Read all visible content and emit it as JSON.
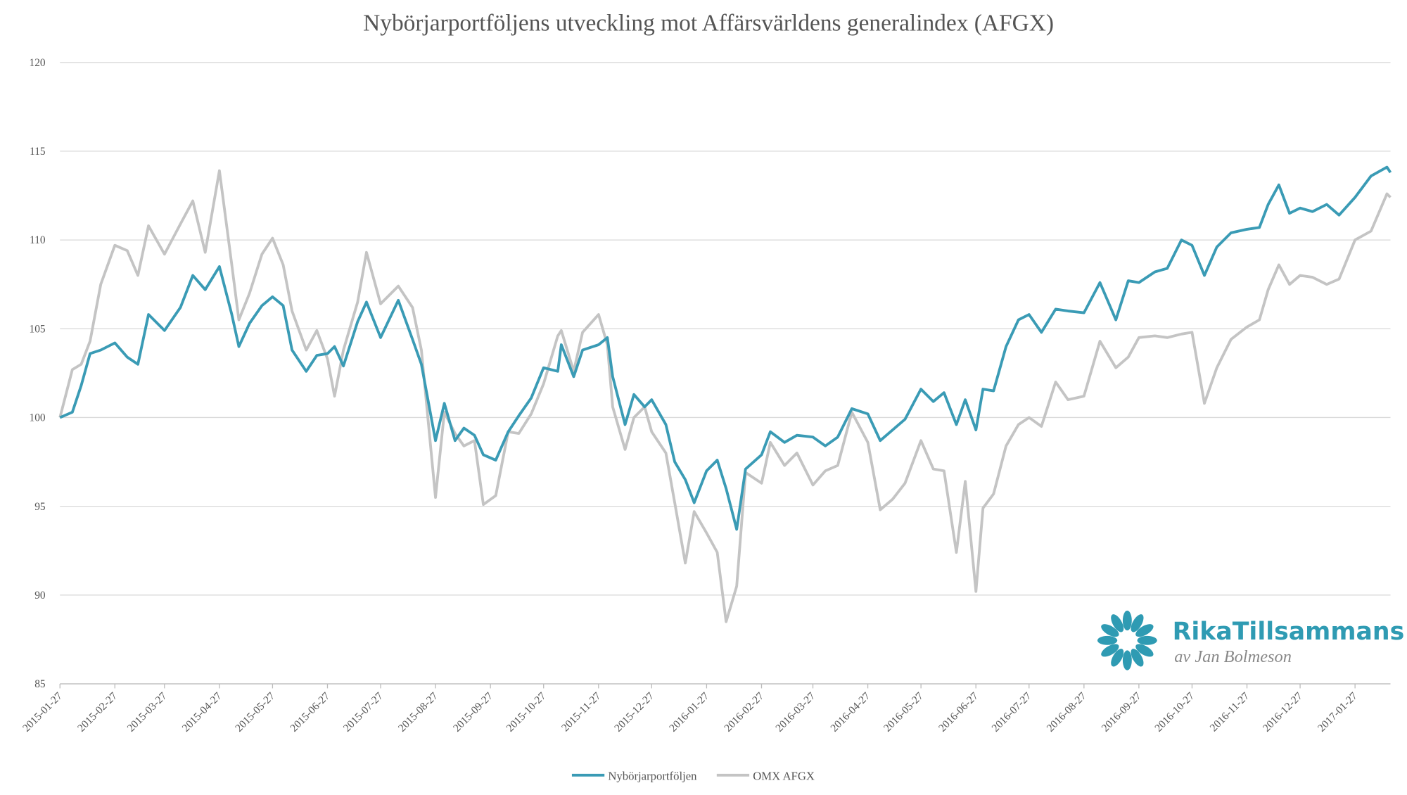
{
  "chart_data": {
    "type": "line",
    "title": "Nybörjarportföljens utveckling mot Affärsvärldens generalindex (AFGX)",
    "x": [
      "2015-01-27",
      "2015-02-03",
      "2015-02-08",
      "2015-02-13",
      "2015-02-19",
      "2015-02-27",
      "2015-03-06",
      "2015-03-12",
      "2015-03-18",
      "2015-03-27",
      "2015-04-05",
      "2015-04-12",
      "2015-04-19",
      "2015-04-27",
      "2015-05-04",
      "2015-05-08",
      "2015-05-14",
      "2015-05-21",
      "2015-05-27",
      "2015-06-02",
      "2015-06-07",
      "2015-06-15",
      "2015-06-21",
      "2015-06-27",
      "2015-07-01",
      "2015-07-06",
      "2015-07-14",
      "2015-07-19",
      "2015-07-27",
      "2015-08-06",
      "2015-08-14",
      "2015-08-19",
      "2015-08-27",
      "2015-09-01",
      "2015-09-07",
      "2015-09-12",
      "2015-09-18",
      "2015-09-23",
      "2015-09-30",
      "2015-10-07",
      "2015-10-13",
      "2015-10-20",
      "2015-10-27",
      "2015-11-04",
      "2015-11-06",
      "2015-11-13",
      "2015-11-18",
      "2015-11-27",
      "2015-12-02",
      "2015-12-05",
      "2015-12-12",
      "2015-12-17",
      "2015-12-23",
      "2015-12-27",
      "2016-01-04",
      "2016-01-09",
      "2016-01-15",
      "2016-01-20",
      "2016-01-27",
      "2016-02-02",
      "2016-02-07",
      "2016-02-13",
      "2016-02-18",
      "2016-02-27",
      "2016-03-03",
      "2016-03-11",
      "2016-03-18",
      "2016-03-27",
      "2016-04-03",
      "2016-04-10",
      "2016-04-18",
      "2016-04-27",
      "2016-05-04",
      "2016-05-11",
      "2016-05-18",
      "2016-05-27",
      "2016-06-03",
      "2016-06-09",
      "2016-06-16",
      "2016-06-21",
      "2016-06-27",
      "2016-07-01",
      "2016-07-07",
      "2016-07-14",
      "2016-07-21",
      "2016-07-27",
      "2016-08-03",
      "2016-08-11",
      "2016-08-18",
      "2016-08-27",
      "2016-09-05",
      "2016-09-14",
      "2016-09-21",
      "2016-09-27",
      "2016-10-06",
      "2016-10-13",
      "2016-10-21",
      "2016-10-27",
      "2016-11-03",
      "2016-11-10",
      "2016-11-18",
      "2016-11-27",
      "2016-12-04",
      "2016-12-09",
      "2016-12-15",
      "2016-12-21",
      "2016-12-27",
      "2017-01-03",
      "2017-01-11",
      "2017-01-18",
      "2017-01-27",
      "2017-02-05",
      "2017-02-14",
      "2017-02-16"
    ],
    "series": [
      {
        "name": "Nybörjarportföljen",
        "color": "#3a9bb5",
        "values": [
          100,
          100.3,
          101.8,
          103.6,
          103.8,
          104.2,
          103.4,
          103.0,
          105.8,
          104.9,
          106.2,
          108.0,
          107.2,
          108.5,
          105.8,
          104.0,
          105.3,
          106.3,
          106.8,
          106.3,
          103.8,
          102.6,
          103.5,
          103.6,
          104.0,
          102.9,
          105.4,
          106.5,
          104.5,
          106.6,
          104.4,
          103.0,
          98.7,
          100.8,
          98.7,
          99.4,
          99.0,
          97.9,
          97.6,
          99.2,
          100.1,
          101.1,
          102.8,
          102.6,
          104.1,
          102.3,
          103.8,
          104.1,
          104.5,
          102.3,
          99.6,
          101.3,
          100.6,
          101.0,
          99.6,
          97.5,
          96.5,
          95.2,
          97.0,
          97.6,
          96.0,
          93.7,
          97.1,
          97.9,
          99.2,
          98.6,
          99.0,
          98.9,
          98.4,
          98.9,
          100.5,
          100.2,
          98.7,
          99.3,
          99.9,
          101.6,
          100.9,
          101.4,
          99.6,
          101.0,
          99.3,
          101.6,
          101.5,
          104.0,
          105.5,
          105.8,
          104.8,
          106.1,
          106.0,
          105.9,
          107.6,
          105.5,
          107.7,
          107.6,
          108.2,
          108.4,
          110.0,
          109.7,
          108.0,
          109.6,
          110.4,
          110.6,
          110.7,
          112.0,
          113.1,
          111.5,
          111.8,
          111.6,
          112.0,
          111.4,
          112.4,
          113.6,
          114.1,
          113.8
        ]
      },
      {
        "name": "OMX AFGX",
        "color": "#c4c4c4",
        "values": [
          100,
          102.7,
          103.0,
          104.3,
          107.5,
          109.7,
          109.4,
          108.0,
          110.8,
          109.2,
          110.9,
          112.2,
          109.3,
          113.9,
          108.6,
          105.5,
          107.0,
          109.2,
          110.1,
          108.6,
          106.0,
          103.8,
          104.9,
          103.3,
          101.2,
          103.8,
          106.5,
          109.3,
          106.4,
          107.4,
          106.2,
          103.8,
          95.5,
          100.3,
          99.1,
          98.4,
          98.7,
          95.1,
          95.6,
          99.2,
          99.1,
          100.2,
          101.9,
          104.6,
          104.9,
          102.6,
          104.8,
          105.8,
          104.1,
          100.6,
          98.2,
          100.0,
          100.6,
          99.2,
          98.0,
          95.2,
          91.8,
          94.7,
          93.5,
          92.4,
          88.5,
          90.5,
          96.9,
          96.3,
          98.6,
          97.3,
          98.0,
          96.2,
          97.0,
          97.3,
          100.3,
          98.6,
          94.8,
          95.4,
          96.3,
          98.7,
          97.1,
          97.0,
          92.4,
          96.4,
          90.2,
          94.9,
          95.7,
          98.4,
          99.6,
          100.0,
          99.5,
          102.0,
          101.0,
          101.2,
          104.3,
          102.8,
          103.4,
          104.5,
          104.6,
          104.5,
          104.7,
          104.8,
          100.8,
          102.8,
          104.4,
          105.1,
          105.5,
          107.2,
          108.6,
          107.5,
          108.0,
          107.9,
          107.5,
          107.8,
          110.0,
          110.5,
          112.6,
          112.4
        ]
      }
    ],
    "xlim": [
      "2015-01-27",
      "2017-02-16"
    ],
    "xticks": [
      "2015-01-27",
      "2015-02-27",
      "2015-03-27",
      "2015-04-27",
      "2015-05-27",
      "2015-06-27",
      "2015-07-27",
      "2015-08-27",
      "2015-09-27",
      "2015-10-27",
      "2015-11-27",
      "2015-12-27",
      "2016-01-27",
      "2016-02-27",
      "2016-03-27",
      "2016-04-27",
      "2016-05-27",
      "2016-06-27",
      "2016-07-27",
      "2016-08-27",
      "2016-09-27",
      "2016-10-27",
      "2016-11-27",
      "2016-12-27",
      "2017-01-27"
    ],
    "ylim": [
      85,
      120
    ],
    "yticks": [
      85,
      90,
      95,
      100,
      105,
      110,
      115,
      120
    ],
    "grid": true,
    "legend": "bottom"
  },
  "logo": {
    "name": "RikaTillsammans",
    "tagline": "av Jan Bolmeson"
  }
}
